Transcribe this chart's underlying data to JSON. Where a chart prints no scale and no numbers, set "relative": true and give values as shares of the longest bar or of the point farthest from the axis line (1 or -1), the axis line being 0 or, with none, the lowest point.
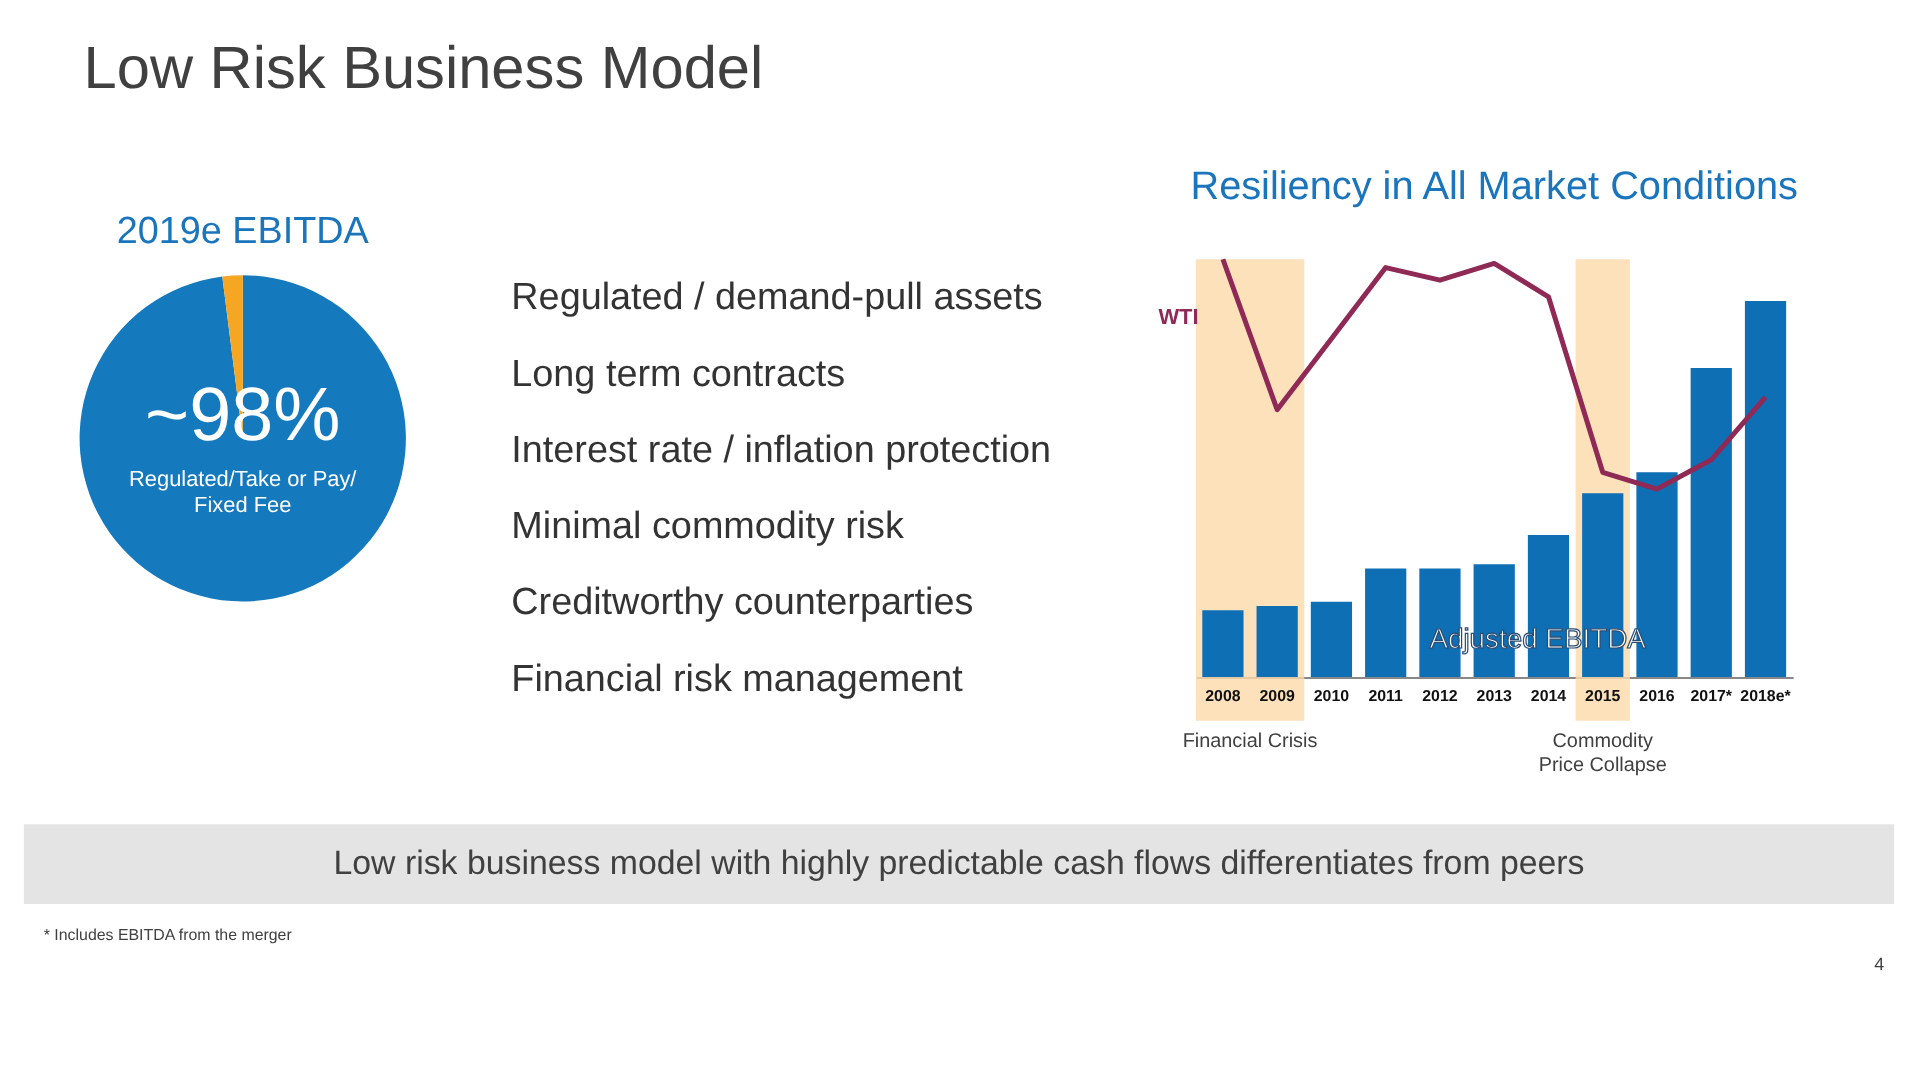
{
  "chart_data": [
    {
      "type": "other",
      "title": "Low Risk Business Model",
      "annotations": [
        "Low risk business model with highly predictable cash flows differentiates from peers",
        "* Includes EBITDA from the merger",
        "4"
      ]
    },
    {
      "type": "pie",
      "title": "2019e EBITDA",
      "categories": [
        "Regulated/Take or Pay/\nFixed Fee",
        null
      ],
      "values": [
        98,
        2
      ],
      "colors": [
        "#1479bd",
        "#f5a623"
      ],
      "value_labels": [
        "~98%",
        null
      ]
    },
    {
      "type": "other",
      "annotations": [
        "Regulated / demand-pull assets",
        "Long term contracts",
        "Interest rate / inflation protection",
        "Minimal commodity risk",
        "Creditworthy counterparties",
        "Financial risk management"
      ]
    },
    {
      "type": "bar",
      "title": "Resiliency in All Market Conditions",
      "relative": true,
      "tick_labels": "x",
      "categories": [
        "2008",
        "2009",
        "2010",
        "2011",
        "2012",
        "2013",
        "2014",
        "2015",
        "2016",
        "2017*",
        "2018e*"
      ],
      "series": [
        {
          "name": "Adjusted EBITDA",
          "type": "bar",
          "color": "#0f6fb5",
          "values": [
            0.16,
            0.17,
            0.18,
            0.26,
            0.26,
            0.27,
            0.34,
            0.44,
            0.49,
            0.74,
            0.9
          ]
        },
        {
          "name": "WTI",
          "type": "line",
          "color": "#8e2a55",
          "values": [
            1,
            0.64,
            0.81,
            0.98,
            0.95,
            0.99,
            0.91,
            0.49,
            0.45,
            0.52,
            0.67
          ]
        }
      ],
      "bands": [
        {
          "axis": "x",
          "from": "2008",
          "to": "2009",
          "label": "Financial Crisis",
          "color": "#fbd9a9"
        },
        {
          "axis": "x",
          "from": "2015",
          "to": "2015",
          "label": "Commodity\nPrice Collapse",
          "color": "#fbd9a9"
        }
      ]
    }
  ]
}
